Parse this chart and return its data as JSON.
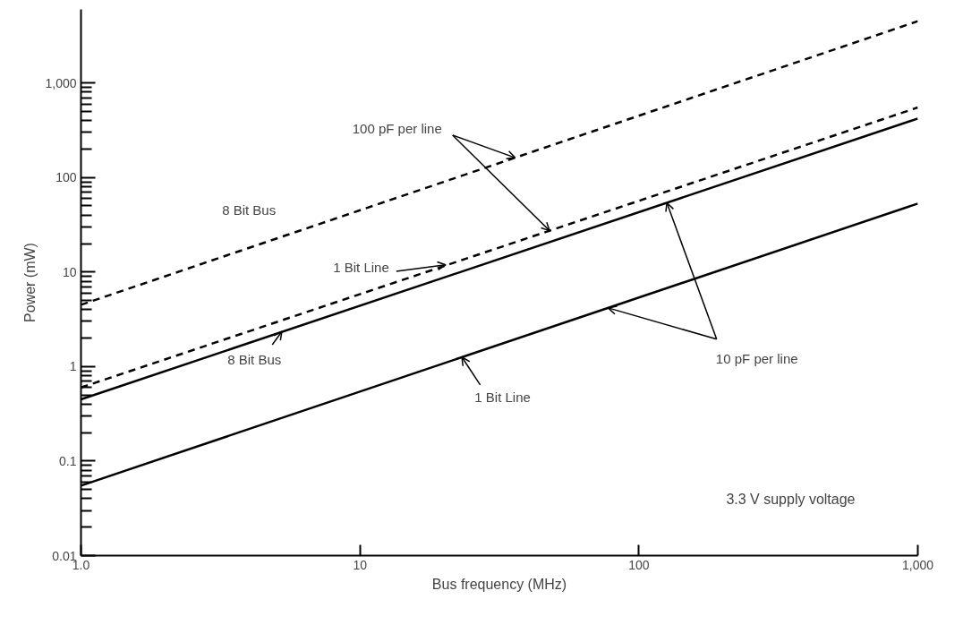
{
  "chart_data": {
    "type": "line",
    "xlabel": "Bus frequency (MHz)",
    "ylabel": "Power (mW)",
    "log": "xy",
    "x": [
      1,
      1000
    ],
    "series": [
      {
        "color": "#000000",
        "line_style": "dashed",
        "values": [
          4.5,
          4500
        ]
      },
      {
        "color": "#000000",
        "line_style": "dashed",
        "values": [
          0.6,
          550
        ]
      },
      {
        "color": "#000000",
        "line_style": "solid",
        "values": [
          0.45,
          420
        ]
      },
      {
        "color": "#000000",
        "line_style": "solid",
        "values": [
          0.055,
          53
        ]
      }
    ],
    "xlim": [
      1,
      1000
    ],
    "ylim": [
      0.01,
      6000
    ],
    "xticks": [
      {
        "value": 1,
        "label": "1.0"
      },
      10,
      100,
      {
        "value": 1000,
        "label": "1,000"
      }
    ],
    "yticks": [
      0.01,
      0.1,
      1,
      10,
      100,
      {
        "value": 1000,
        "label": "1,000"
      }
    ],
    "grid": false,
    "marker": "none",
    "annotations": [
      {
        "text": "100 pF per line",
        "x": 36,
        "y": 162
      },
      "8 Bit Bus",
      {
        "text": "1 Bit Line",
        "x": 20.3,
        "y": 11.9
      },
      {
        "text": "8 Bit Bus",
        "x": 5.25,
        "y": 2.35
      },
      {
        "text": "1 Bit Line",
        "x": 23.2,
        "y": 1.26
      },
      {
        "text": "10 pF per line",
        "x": 126,
        "y": 54
      },
      "3.3 V supply voltage"
    ]
  }
}
